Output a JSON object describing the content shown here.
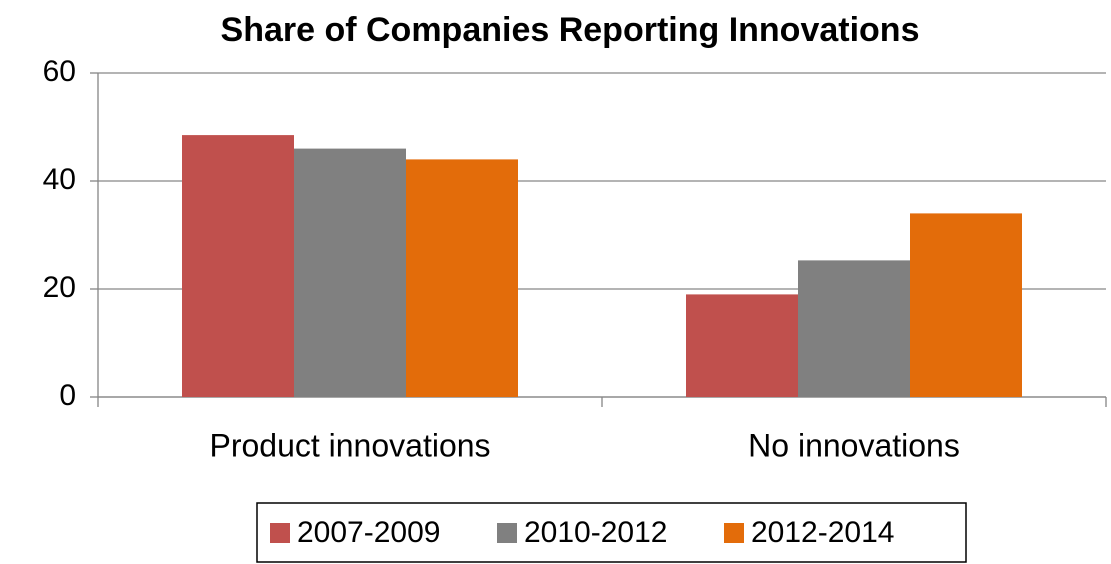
{
  "chart_data": {
    "type": "bar",
    "title": "Share of Companies Reporting Innovations",
    "categories": [
      "Product innovations",
      "No innovations"
    ],
    "series": [
      {
        "name": "2007-2009",
        "color": "#c0504d",
        "values": [
          48.5,
          19
        ]
      },
      {
        "name": "2010-2012",
        "color": "#808080",
        "values": [
          46,
          25.3
        ]
      },
      {
        "name": "2012-2014",
        "color": "#e36c0a",
        "values": [
          44,
          34
        ]
      }
    ],
    "ylim": [
      0,
      60
    ],
    "yticks": [
      0,
      20,
      40,
      60
    ],
    "grid": true,
    "legend": "bottom"
  }
}
